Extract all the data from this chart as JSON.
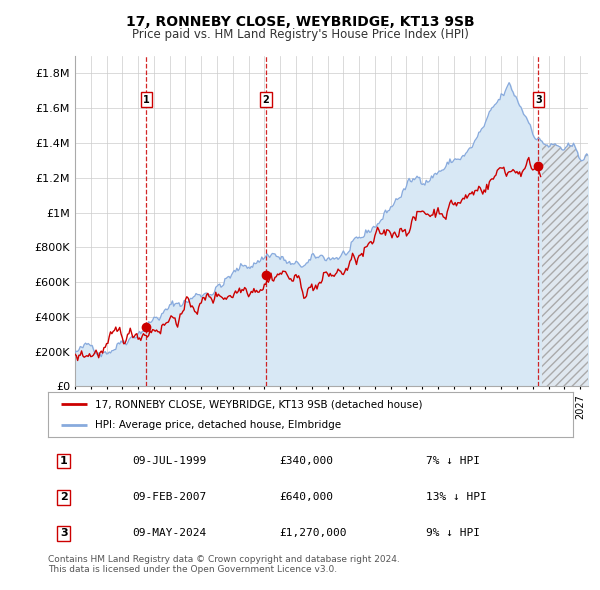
{
  "title": "17, RONNEBY CLOSE, WEYBRIDGE, KT13 9SB",
  "subtitle": "Price paid vs. HM Land Registry's House Price Index (HPI)",
  "ylim": [
    0,
    1900000
  ],
  "yticks": [
    0,
    200000,
    400000,
    600000,
    800000,
    1000000,
    1200000,
    1400000,
    1600000,
    1800000
  ],
  "ytick_labels": [
    "£0",
    "£200K",
    "£400K",
    "£600K",
    "£800K",
    "£1M",
    "£1.2M",
    "£1.4M",
    "£1.6M",
    "£1.8M"
  ],
  "xlim_start": 1995.0,
  "xlim_end": 2027.5,
  "hatch_start": 2024.55,
  "purchases": [
    {
      "date": 1999.52,
      "price": 340000,
      "label": "1"
    },
    {
      "date": 2007.1,
      "price": 640000,
      "label": "2"
    },
    {
      "date": 2024.36,
      "price": 1270000,
      "label": "3"
    }
  ],
  "purchase_color": "#cc0000",
  "hpi_color": "#88aadd",
  "hpi_fill_color": "#d8e8f5",
  "hatch_fill_color": "#e0e8f0",
  "legend_entries": [
    "17, RONNEBY CLOSE, WEYBRIDGE, KT13 9SB (detached house)",
    "HPI: Average price, detached house, Elmbridge"
  ],
  "table_rows": [
    [
      "1",
      "09-JUL-1999",
      "£340,000",
      "7% ↓ HPI"
    ],
    [
      "2",
      "09-FEB-2007",
      "£640,000",
      "13% ↓ HPI"
    ],
    [
      "3",
      "09-MAY-2024",
      "£1,270,000",
      "9% ↓ HPI"
    ]
  ],
  "footer": "Contains HM Land Registry data © Crown copyright and database right 2024.\nThis data is licensed under the Open Government Licence v3.0.",
  "bg_color": "#ffffff",
  "grid_color": "#cccccc"
}
